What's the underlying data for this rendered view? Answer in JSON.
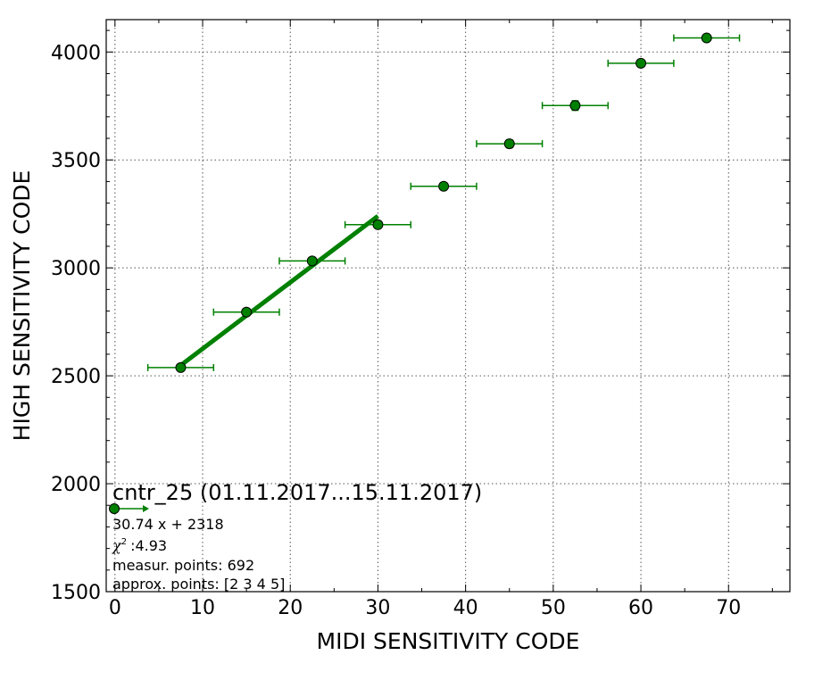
{
  "chart_data": {
    "type": "scatter",
    "xlabel": "MIDI SENSITIVITY CODE",
    "ylabel": "HIGH SENSITIVITY CODE",
    "xlim": [
      -1,
      77
    ],
    "ylim": [
      1500,
      4150
    ],
    "xticks": [
      0,
      10,
      20,
      30,
      40,
      50,
      60,
      70
    ],
    "yticks": [
      1500,
      2000,
      2500,
      3000,
      3500,
      4000
    ],
    "grid": true,
    "points": {
      "x": [
        7.5,
        15,
        22.5,
        30,
        37.5,
        45,
        52.5,
        60,
        67.5
      ],
      "y": [
        2538,
        2795,
        3032,
        3200,
        3378,
        3575,
        3752,
        3948,
        4065
      ],
      "xerr": [
        3.75,
        3.75,
        3.75,
        3.75,
        3.75,
        3.75,
        3.75,
        3.75,
        3.75
      ],
      "yerr": [
        15,
        15,
        15,
        15,
        15,
        18,
        22,
        15,
        10
      ],
      "color": "#008000"
    },
    "fit": {
      "slope": 30.74,
      "intercept": 2318,
      "x_range": [
        7.5,
        30
      ],
      "color": "#008000"
    },
    "annotation": {
      "title": "cntr_25 (01.11.2017...15.11.2017)",
      "equation": "30.74 x + 2318",
      "chi2_symbol": "χ",
      "chi2_exp": "2",
      "chi2_value": ":4.93",
      "measur_points": "measur. points: 692",
      "approx_points": "approx. points: [2 3 4 5]"
    }
  }
}
